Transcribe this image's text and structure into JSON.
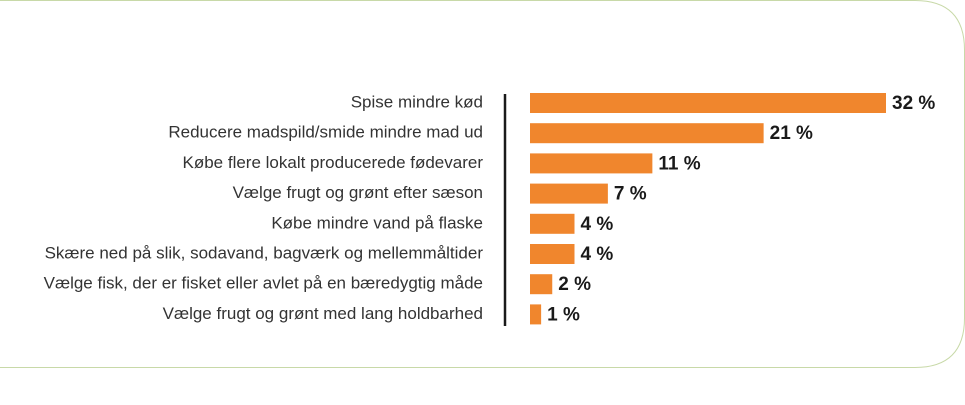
{
  "chart_data": {
    "type": "bar",
    "orientation": "horizontal",
    "categories": [
      "Spise mindre kød",
      "Reducere madspild/smide mindre mad ud",
      "Købe flere lokalt producerede fødevarer",
      "Vælge frugt og grønt efter sæson",
      "Købe mindre vand på flaske",
      "Skære ned på slik, sodavand, bagværk og mellemmåltider",
      "Vælge fisk, der er fisket eller avlet på en bæredygtig måde",
      "Vælge frugt og grønt med lang holdbarhed"
    ],
    "values": [
      32,
      21,
      11,
      7,
      4,
      4,
      2,
      1
    ],
    "value_labels": [
      "32 %",
      "21 %",
      "11 %",
      "7 %",
      "4 %",
      "4 %",
      "2 %",
      "1 %"
    ],
    "color": "#f0862d",
    "xlim": [
      0,
      32
    ]
  }
}
